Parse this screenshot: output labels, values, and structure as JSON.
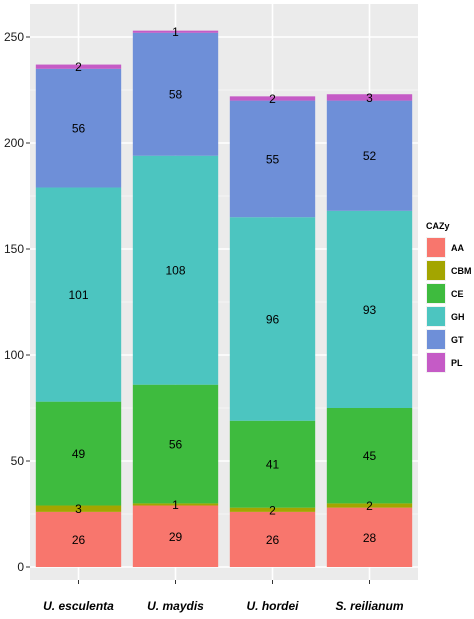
{
  "chart_data": {
    "type": "bar",
    "stacked": true,
    "categories": [
      "U. esculenta",
      "U. maydis",
      "U. hordei",
      "S. reilianum"
    ],
    "series": [
      {
        "name": "AA",
        "color": "#F8766D",
        "values": [
          26,
          29,
          26,
          28
        ]
      },
      {
        "name": "CBM",
        "color": "#A3A500",
        "values": [
          3,
          1,
          2,
          2
        ]
      },
      {
        "name": "CE",
        "color": "#3EBB3E",
        "values": [
          49,
          56,
          41,
          45
        ]
      },
      {
        "name": "GH",
        "color": "#4CC5C0",
        "values": [
          101,
          108,
          96,
          93
        ]
      },
      {
        "name": "GT",
        "color": "#6E8FD8",
        "values": [
          56,
          58,
          55,
          52
        ]
      },
      {
        "name": "PL",
        "color": "#C55BC6",
        "values": [
          2,
          1,
          2,
          3
        ]
      }
    ],
    "ylim": [
      0,
      255
    ],
    "yticks": [
      0,
      50,
      100,
      150,
      200,
      250
    ],
    "grid": true,
    "legend": {
      "title": "CAZy",
      "placement": "right"
    },
    "title": "",
    "xlabel": "",
    "ylabel": ""
  }
}
